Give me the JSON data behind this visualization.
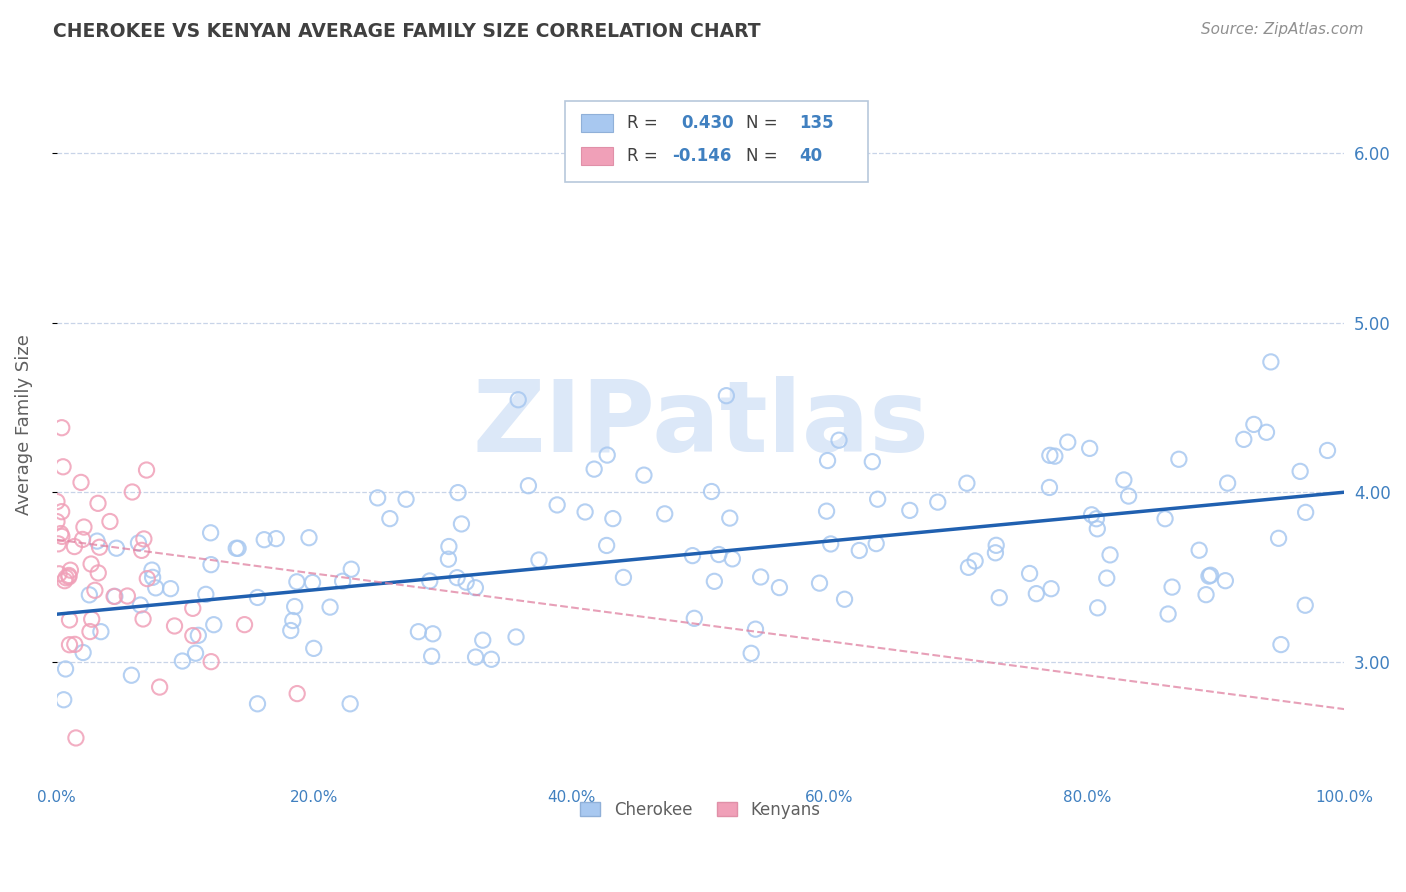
{
  "title": "CHEROKEE VS KENYAN AVERAGE FAMILY SIZE CORRELATION CHART",
  "source_text": "Source: ZipAtlas.com",
  "ylabel": "Average Family Size",
  "xlim": [
    0,
    1
  ],
  "ylim": [
    2.3,
    6.5
  ],
  "yticks": [
    3.0,
    4.0,
    5.0,
    6.0
  ],
  "xticks": [
    0.0,
    0.2,
    0.4,
    0.6,
    0.8,
    1.0
  ],
  "xtick_labels": [
    "0.0%",
    "20.0%",
    "40.0%",
    "60.0%",
    "80.0%",
    "100.0%"
  ],
  "ytick_labels_right": [
    "3.00",
    "4.00",
    "5.00",
    "6.00"
  ],
  "cherokee_R": 0.43,
  "cherokee_N": 135,
  "kenyan_R": -0.146,
  "kenyan_N": 40,
  "cherokee_color": "#a8c8f0",
  "kenyan_color": "#f0a0b8",
  "trend_cherokee_color": "#2060b0",
  "trend_kenyan_color": "#e080a0",
  "background_color": "#ffffff",
  "grid_color": "#c8d4e8",
  "title_color": "#404040",
  "axis_label_color": "#606060",
  "tick_color": "#4080c0",
  "watermark_color": "#dce8f8",
  "legend_entries": [
    "Cherokee",
    "Kenyans"
  ]
}
